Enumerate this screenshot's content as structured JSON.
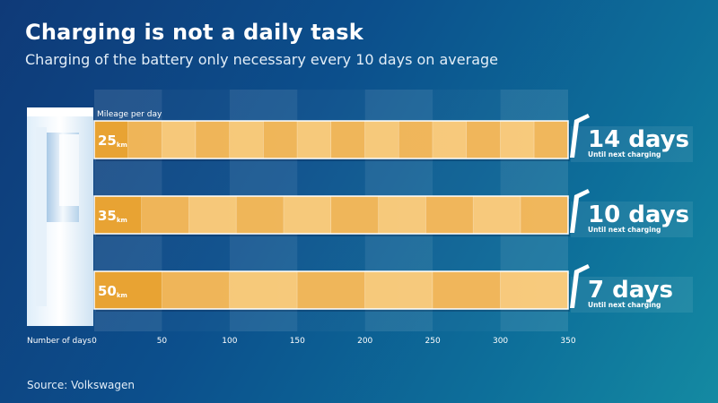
{
  "title": "Charging is not a daily task",
  "subtitle": "Charging of the battery only necessary every 10 days on average",
  "source": "Source: Volkswagen",
  "chart_data": {
    "type": "bar",
    "orientation": "horizontal",
    "mileage_label": "Mileage per day",
    "xlabel": "Number of days",
    "x_ticks": [
      0,
      50,
      100,
      150,
      200,
      250,
      300,
      350
    ],
    "xlim": [
      0,
      350
    ],
    "unit": "km",
    "rows": [
      {
        "mileage": "25",
        "total": 350,
        "segment_km": 25,
        "days": "14 days",
        "caption": "Until next charging"
      },
      {
        "mileage": "35",
        "total": 350,
        "segment_km": 35,
        "days": "10 days",
        "caption": "Until next charging"
      },
      {
        "mileage": "50",
        "total": 350,
        "segment_km": 50,
        "days": "7 days",
        "caption": "Until next charging"
      }
    ],
    "colors": {
      "highlight": "#e8a333",
      "segment_light": "#f6c97b",
      "segment_dark": "#eeb457",
      "divider": "#d99a3c"
    }
  }
}
